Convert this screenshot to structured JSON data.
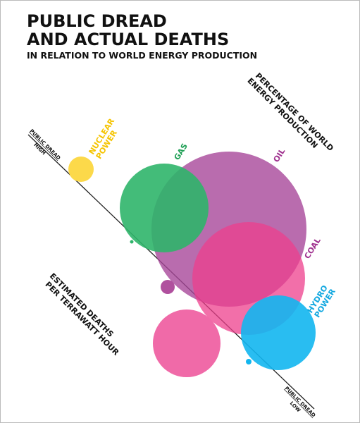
{
  "header": {
    "title": [
      "PUBLIC DREAD",
      "AND ACTUAL DEATHS"
    ],
    "subtitle": "IN RELATION TO WORLD ENERGY PRODUCTION"
  },
  "axes": {
    "production": [
      "PERCENTAGE OF WORLD",
      "ENERGY PRODUCTION"
    ],
    "deaths": [
      "ESTIMATED DEATHS",
      "PER TERRAWATT HOUR"
    ],
    "dread_high": [
      "PUBLIC DREAD",
      "HIGH"
    ],
    "dread_low": [
      "PUBLIC DREAD",
      "LOW"
    ]
  },
  "sources": [
    {
      "label": [
        "NUCLEAR",
        "POWER"
      ],
      "color": "#f5c400"
    },
    {
      "label": [
        "GAS"
      ],
      "color": "#1f9f55"
    },
    {
      "label": [
        "OIL"
      ],
      "color": "#a0328f"
    },
    {
      "label": [
        "COAL"
      ],
      "color": "#a0328f"
    },
    {
      "label": [
        "HYDRO",
        "POWER"
      ],
      "color": "#12a8e0"
    }
  ]
}
